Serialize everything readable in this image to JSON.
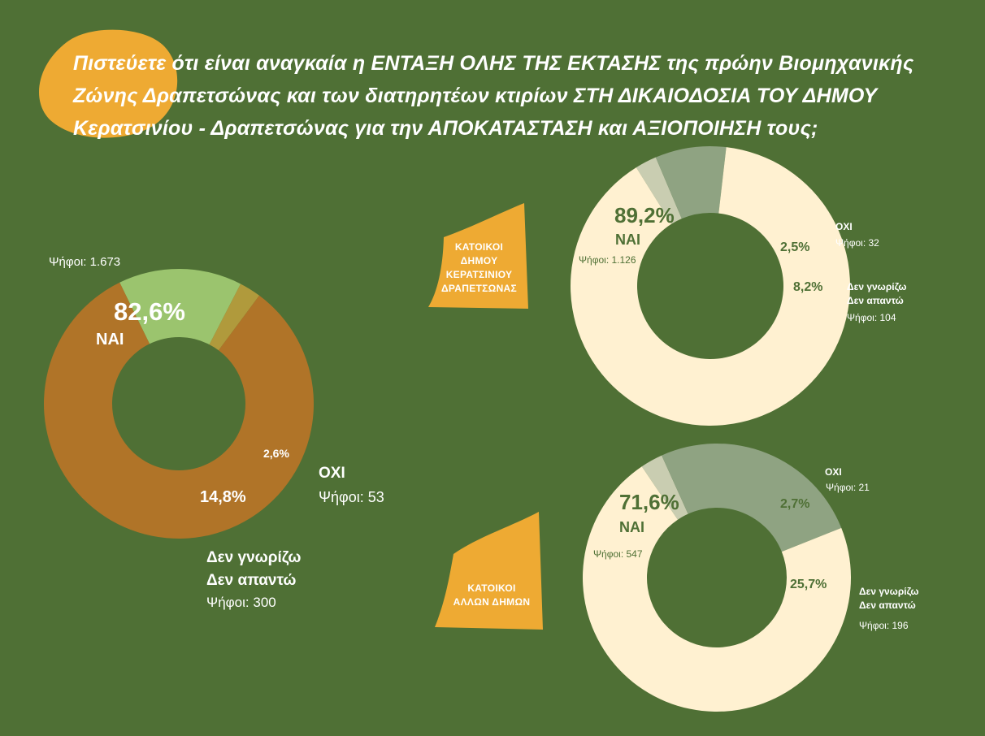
{
  "title": "Πιστεύετε ότι είναι αναγκαία η ΕΝΤΑΞΗ ΟΛΗΣ ΤΗΣ ΕΚΤΑΣΗΣ της πρώην Βιομηχανικής Ζώνης Δραπετσώνας και των διατηρητέων κτιρίων ΣΤΗ ΔΙΚΑΙΟΔΟΣΙΑ ΤΟΥ ΔΗΜΟΥ Κερατσινίου - Δραπετσώνας για την ΑΠΟΚΑΤΑΣΤΑΣΗ και ΑΞΙΟΠΟΙΗΣΗ τους;",
  "colors": {
    "background": "#4f7035",
    "accent_orange": "#eeaa33",
    "brown": "#b07428",
    "light_green": "#9bc46e",
    "olive": "#b09a3c",
    "cream": "#fff1d1",
    "sage": "#8fa382",
    "pale_sage": "#c9cdb1"
  },
  "chart_data": [
    {
      "type": "pie",
      "variant": "donut",
      "title": "",
      "total_votes": "Ψήφοι: 1.673",
      "slices": [
        {
          "label": "ΝΑΙ",
          "line2": "",
          "value": 82.6,
          "display": "82,6%",
          "votes": "",
          "color": "#b07428"
        },
        {
          "label": "ΟΧΙ",
          "line2": "",
          "value": 2.6,
          "display": "2,6%",
          "votes": "Ψήφοι: 53",
          "color": "#b09a3c"
        },
        {
          "label": "Δεν γνωρίζω",
          "line2": "Δεν απαντώ",
          "value": 14.8,
          "display": "14,8%",
          "votes": "Ψήφοι: 300",
          "color": "#9bc46e"
        }
      ]
    },
    {
      "type": "pie",
      "variant": "donut",
      "title": "ΚΑΤΟΙΚΟΙ ΔΗΜΟΥ ΚΕΡΑΤΣΙΝΙΟΥ ΔΡΑΠΕΤΣΩΝΑΣ",
      "title_lines": [
        "ΚΑΤΟΙΚΟΙ",
        "ΔΗΜΟΥ",
        "ΚΕΡΑΤΣΙΝΙΟΥ",
        "ΔΡΑΠΕΤΣΩΝΑΣ"
      ],
      "slices": [
        {
          "label": "ΝΑΙ",
          "line2": "",
          "value": 89.2,
          "display": "89,2%",
          "votes": "Ψήφοι: 1.126",
          "color": "#fff1d1"
        },
        {
          "label": "ΟΧΙ",
          "line2": "",
          "value": 2.5,
          "display": "2,5%",
          "votes": "Ψήφοι: 32",
          "color": "#c9cdb1"
        },
        {
          "label": "Δεν γνωρίζω",
          "line2": "Δεν απαντώ",
          "value": 8.2,
          "display": "8,2%",
          "votes": "Ψήφοι: 104",
          "color": "#8fa382"
        }
      ]
    },
    {
      "type": "pie",
      "variant": "donut",
      "title": "ΚΑΤΟΙΚΟΙ ΑΛΛΩΝ ΔΗΜΩΝ",
      "title_lines": [
        "ΚΑΤΟΙΚΟΙ",
        "ΑΛΛΩΝ ΔΗΜΩΝ"
      ],
      "slices": [
        {
          "label": "ΝΑΙ",
          "line2": "",
          "value": 71.6,
          "display": "71,6%",
          "votes": "Ψήφοι: 547",
          "color": "#fff1d1"
        },
        {
          "label": "ΟΧΙ",
          "line2": "",
          "value": 2.7,
          "display": "2,7%",
          "votes": "Ψήφοι: 21",
          "color": "#c9cdb1"
        },
        {
          "label": "Δεν γνωρίζω",
          "line2": "Δεν απαντώ",
          "value": 25.7,
          "display": "25,7%",
          "votes": "Ψήφοι: 196",
          "color": "#8fa382"
        }
      ]
    }
  ]
}
